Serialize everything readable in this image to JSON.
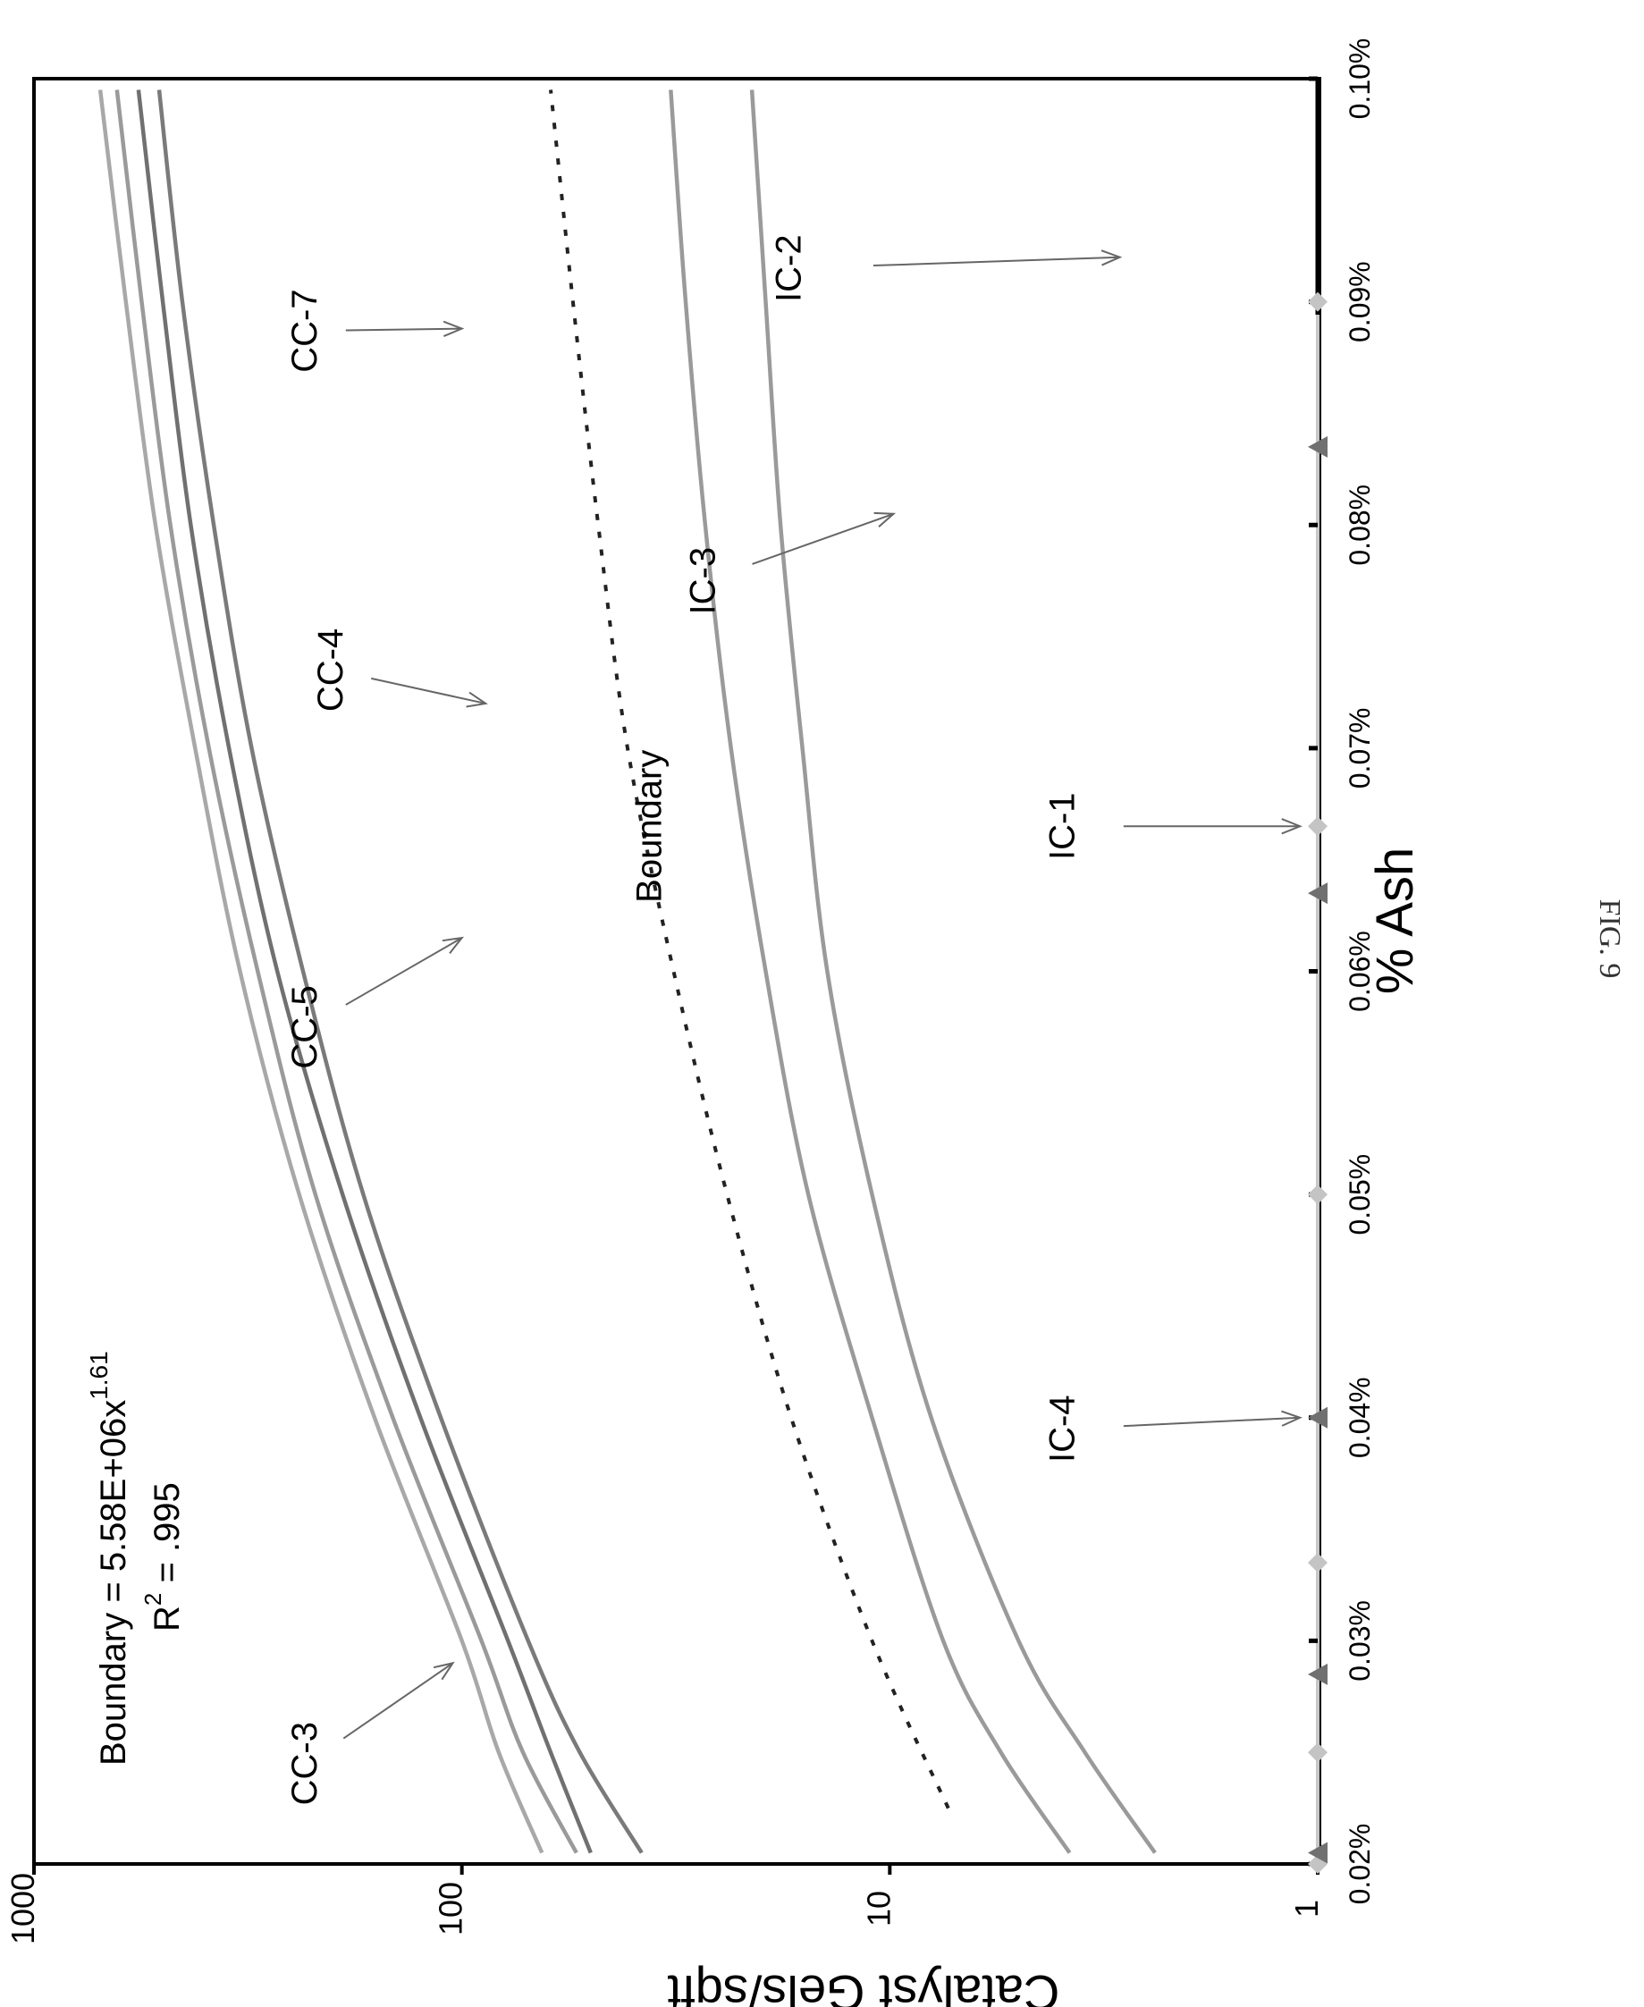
{
  "figure_label": "FIG. 9",
  "chart_data": {
    "type": "line",
    "orientation": "rotated-90-clockwise",
    "xlabel": "% Ash",
    "ylabel": "Catalyst Gels/sqft",
    "yscale": "log",
    "xlim": [
      0.02,
      0.1
    ],
    "ylim": [
      1,
      1000
    ],
    "x_tick_labels": [
      "0.02%",
      "0.03%",
      "0.04%",
      "0.05%",
      "0.06%",
      "0.07%",
      "0.08%",
      "0.09%",
      "0.10%"
    ],
    "y_tick_labels": [
      "1",
      "10",
      "100",
      "1000"
    ],
    "grid": false,
    "equation_lines": [
      "Boundary = 5.58E+06x",
      "1.61",
      "R",
      "2",
      " = .995"
    ],
    "series": [
      {
        "name": "CC-3",
        "color": "#a8a8a8",
        "x": [
          0.0205,
          0.025,
          0.03,
          0.04,
          0.05,
          0.06,
          0.07,
          0.08,
          0.09,
          0.0995
        ],
        "y": [
          65,
          82,
          100,
          160,
          240,
          330,
          420,
          520,
          610,
          700
        ]
      },
      {
        "name": "CC-5",
        "color": "#9a9a9a",
        "x": [
          0.0205,
          0.025,
          0.03,
          0.04,
          0.05,
          0.06,
          0.07,
          0.08,
          0.09,
          0.0995
        ],
        "y": [
          54,
          72,
          90,
          145,
          220,
          300,
          390,
          480,
          560,
          640
        ]
      },
      {
        "name": "CC-4",
        "color": "#707070",
        "x": [
          0.0205,
          0.025,
          0.03,
          0.04,
          0.05,
          0.06,
          0.07,
          0.08,
          0.09,
          0.0995
        ],
        "y": [
          50,
          62,
          78,
          125,
          190,
          270,
          350,
          430,
          500,
          570
        ]
      },
      {
        "name": "CC-7",
        "color": "#7a7a7a",
        "x": [
          0.0205,
          0.025,
          0.03,
          0.04,
          0.05,
          0.06,
          0.07,
          0.08,
          0.09,
          0.0995
        ],
        "y": [
          38,
          53,
          70,
          112,
          170,
          235,
          310,
          380,
          450,
          510
        ]
      },
      {
        "name": "Boundary",
        "color": "#222222",
        "dashed": true,
        "x": [
          0.0225,
          0.03,
          0.04,
          0.05,
          0.06,
          0.07,
          0.08,
          0.09,
          0.0995
        ],
        "y": [
          7.3,
          11,
          17,
          24,
          32,
          41,
          48,
          55,
          62
        ]
      },
      {
        "name": "IC-3",
        "color": "#9a9a9a",
        "x": [
          0.0205,
          0.025,
          0.03,
          0.04,
          0.05,
          0.06,
          0.07,
          0.08,
          0.09,
          0.0995
        ],
        "y": [
          3.8,
          5.5,
          7.5,
          11,
          15.5,
          19.5,
          23.5,
          27,
          30,
          32.5
        ]
      },
      {
        "name": "IC-2",
        "color": "#9a9a9a",
        "x": [
          0.0205,
          0.025,
          0.03,
          0.04,
          0.05,
          0.06,
          0.07,
          0.08,
          0.09,
          0.0995
        ],
        "y": [
          2.4,
          3.5,
          5,
          8,
          11,
          14,
          16,
          18,
          19.5,
          21
        ]
      }
    ],
    "axis_points": [
      {
        "x": 0.02,
        "marker": "diamond"
      },
      {
        "x": 0.0205,
        "marker": "triangle"
      },
      {
        "x": 0.025,
        "marker": "diamond"
      },
      {
        "x": 0.0285,
        "marker": "triangle"
      },
      {
        "x": 0.0335,
        "marker": "diamond"
      },
      {
        "x": 0.04,
        "marker": "triangle"
      },
      {
        "x": 0.05,
        "marker": "diamond"
      },
      {
        "x": 0.0635,
        "marker": "triangle"
      },
      {
        "x": 0.0665,
        "marker": "diamond"
      },
      {
        "x": 0.0835,
        "marker": "triangle"
      },
      {
        "x": 0.09,
        "marker": "diamond"
      }
    ],
    "annotations": [
      {
        "text": "CC-3",
        "x": 0.0245,
        "y": 230,
        "ax": 0.029,
        "ay": 105
      },
      {
        "text": "CC-5",
        "x": 0.0575,
        "y": 230,
        "ax": 0.0615,
        "ay": 100
      },
      {
        "text": "CC-4",
        "x": 0.0735,
        "y": 200,
        "ax": 0.072,
        "ay": 88
      },
      {
        "text": "CC-7",
        "x": 0.0887,
        "y": 230,
        "ax": 0.0888,
        "ay": 100
      },
      {
        "text": "Boundary",
        "x": 0.0665,
        "y": 36
      },
      {
        "text": "IC-3",
        "x": 0.0775,
        "y": 27,
        "ax": 0.0805,
        "ay": 9.8
      },
      {
        "text": "IC-2",
        "x": 0.0915,
        "y": 17,
        "ax": 0.092,
        "ay": 2.9
      },
      {
        "text": "IC-1",
        "x": 0.0665,
        "y": 3.9,
        "ax": 0.0665,
        "ay": 1.1
      },
      {
        "text": "IC-4",
        "x": 0.0395,
        "y": 3.9,
        "ax": 0.04,
        "ay": 1.1
      }
    ]
  }
}
